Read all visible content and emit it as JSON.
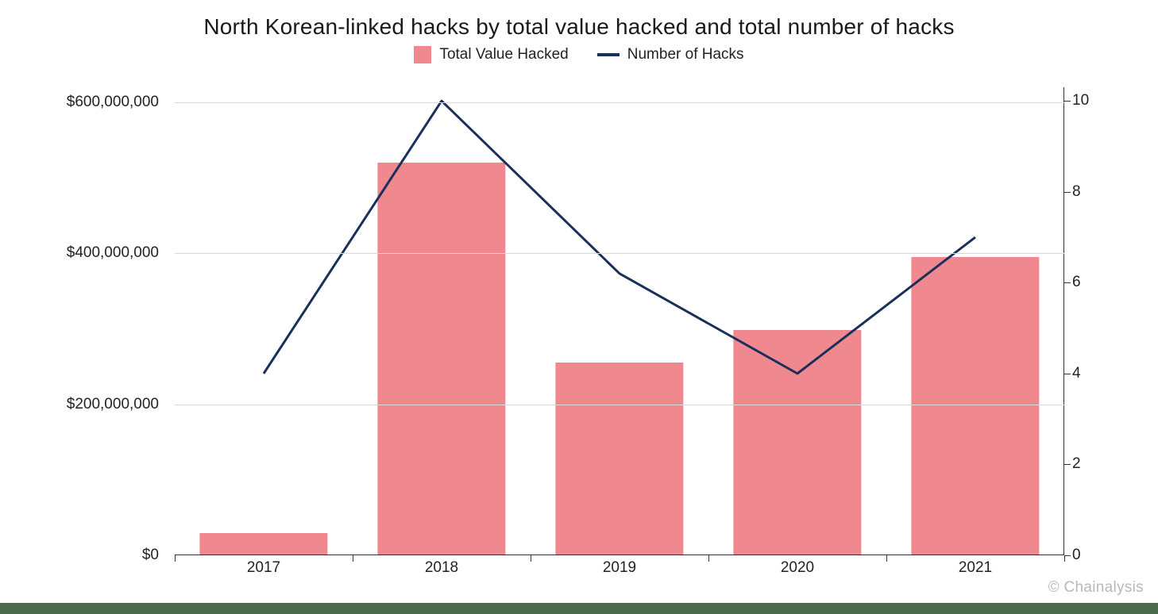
{
  "chart": {
    "type": "bar+line",
    "title": "North Korean-linked hacks by total value hacked and total number of hacks",
    "title_fontsize": 28,
    "title_color": "#1a1a1a",
    "background_color": "#ffffff",
    "grid_color": "#d9d9d9",
    "axis_color": "#333333",
    "tick_label_fontsize": 19,
    "tick_label_color": "#222222",
    "legend": {
      "items": [
        {
          "label": "Total Value Hacked",
          "swatch_color": "#f08890",
          "type": "bar"
        },
        {
          "label": "Number of Hacks",
          "swatch_color": "#1a2f5a",
          "type": "line"
        }
      ],
      "fontsize": 19
    },
    "x": {
      "categories": [
        "2017",
        "2018",
        "2019",
        "2020",
        "2021"
      ]
    },
    "y_left": {
      "lim": [
        0,
        620000000
      ],
      "ticks": [
        0,
        200000000,
        400000000,
        600000000
      ],
      "tick_labels": [
        "$0",
        "$200,000,000",
        "$400,000,000",
        "$600,000,000"
      ],
      "gridlines_at": [
        200000000,
        400000000,
        600000000
      ]
    },
    "y_right": {
      "lim": [
        0,
        10.3
      ],
      "ticks": [
        0,
        2,
        4,
        6,
        8,
        10
      ],
      "tick_labels": [
        "0",
        "2",
        "4",
        "6",
        "8",
        "10"
      ]
    },
    "bars": {
      "values": [
        29000000,
        520000000,
        255000000,
        298000000,
        395000000
      ],
      "color": "#f08890",
      "width_fraction": 0.72
    },
    "line": {
      "values": [
        4,
        10,
        6.2,
        4,
        7
      ],
      "color": "#1a2f5a",
      "width": 3
    },
    "watermark": "© Chainalysis",
    "watermark_color": "#b8b8b8",
    "footer_bar_color": "#4d6b4d"
  }
}
